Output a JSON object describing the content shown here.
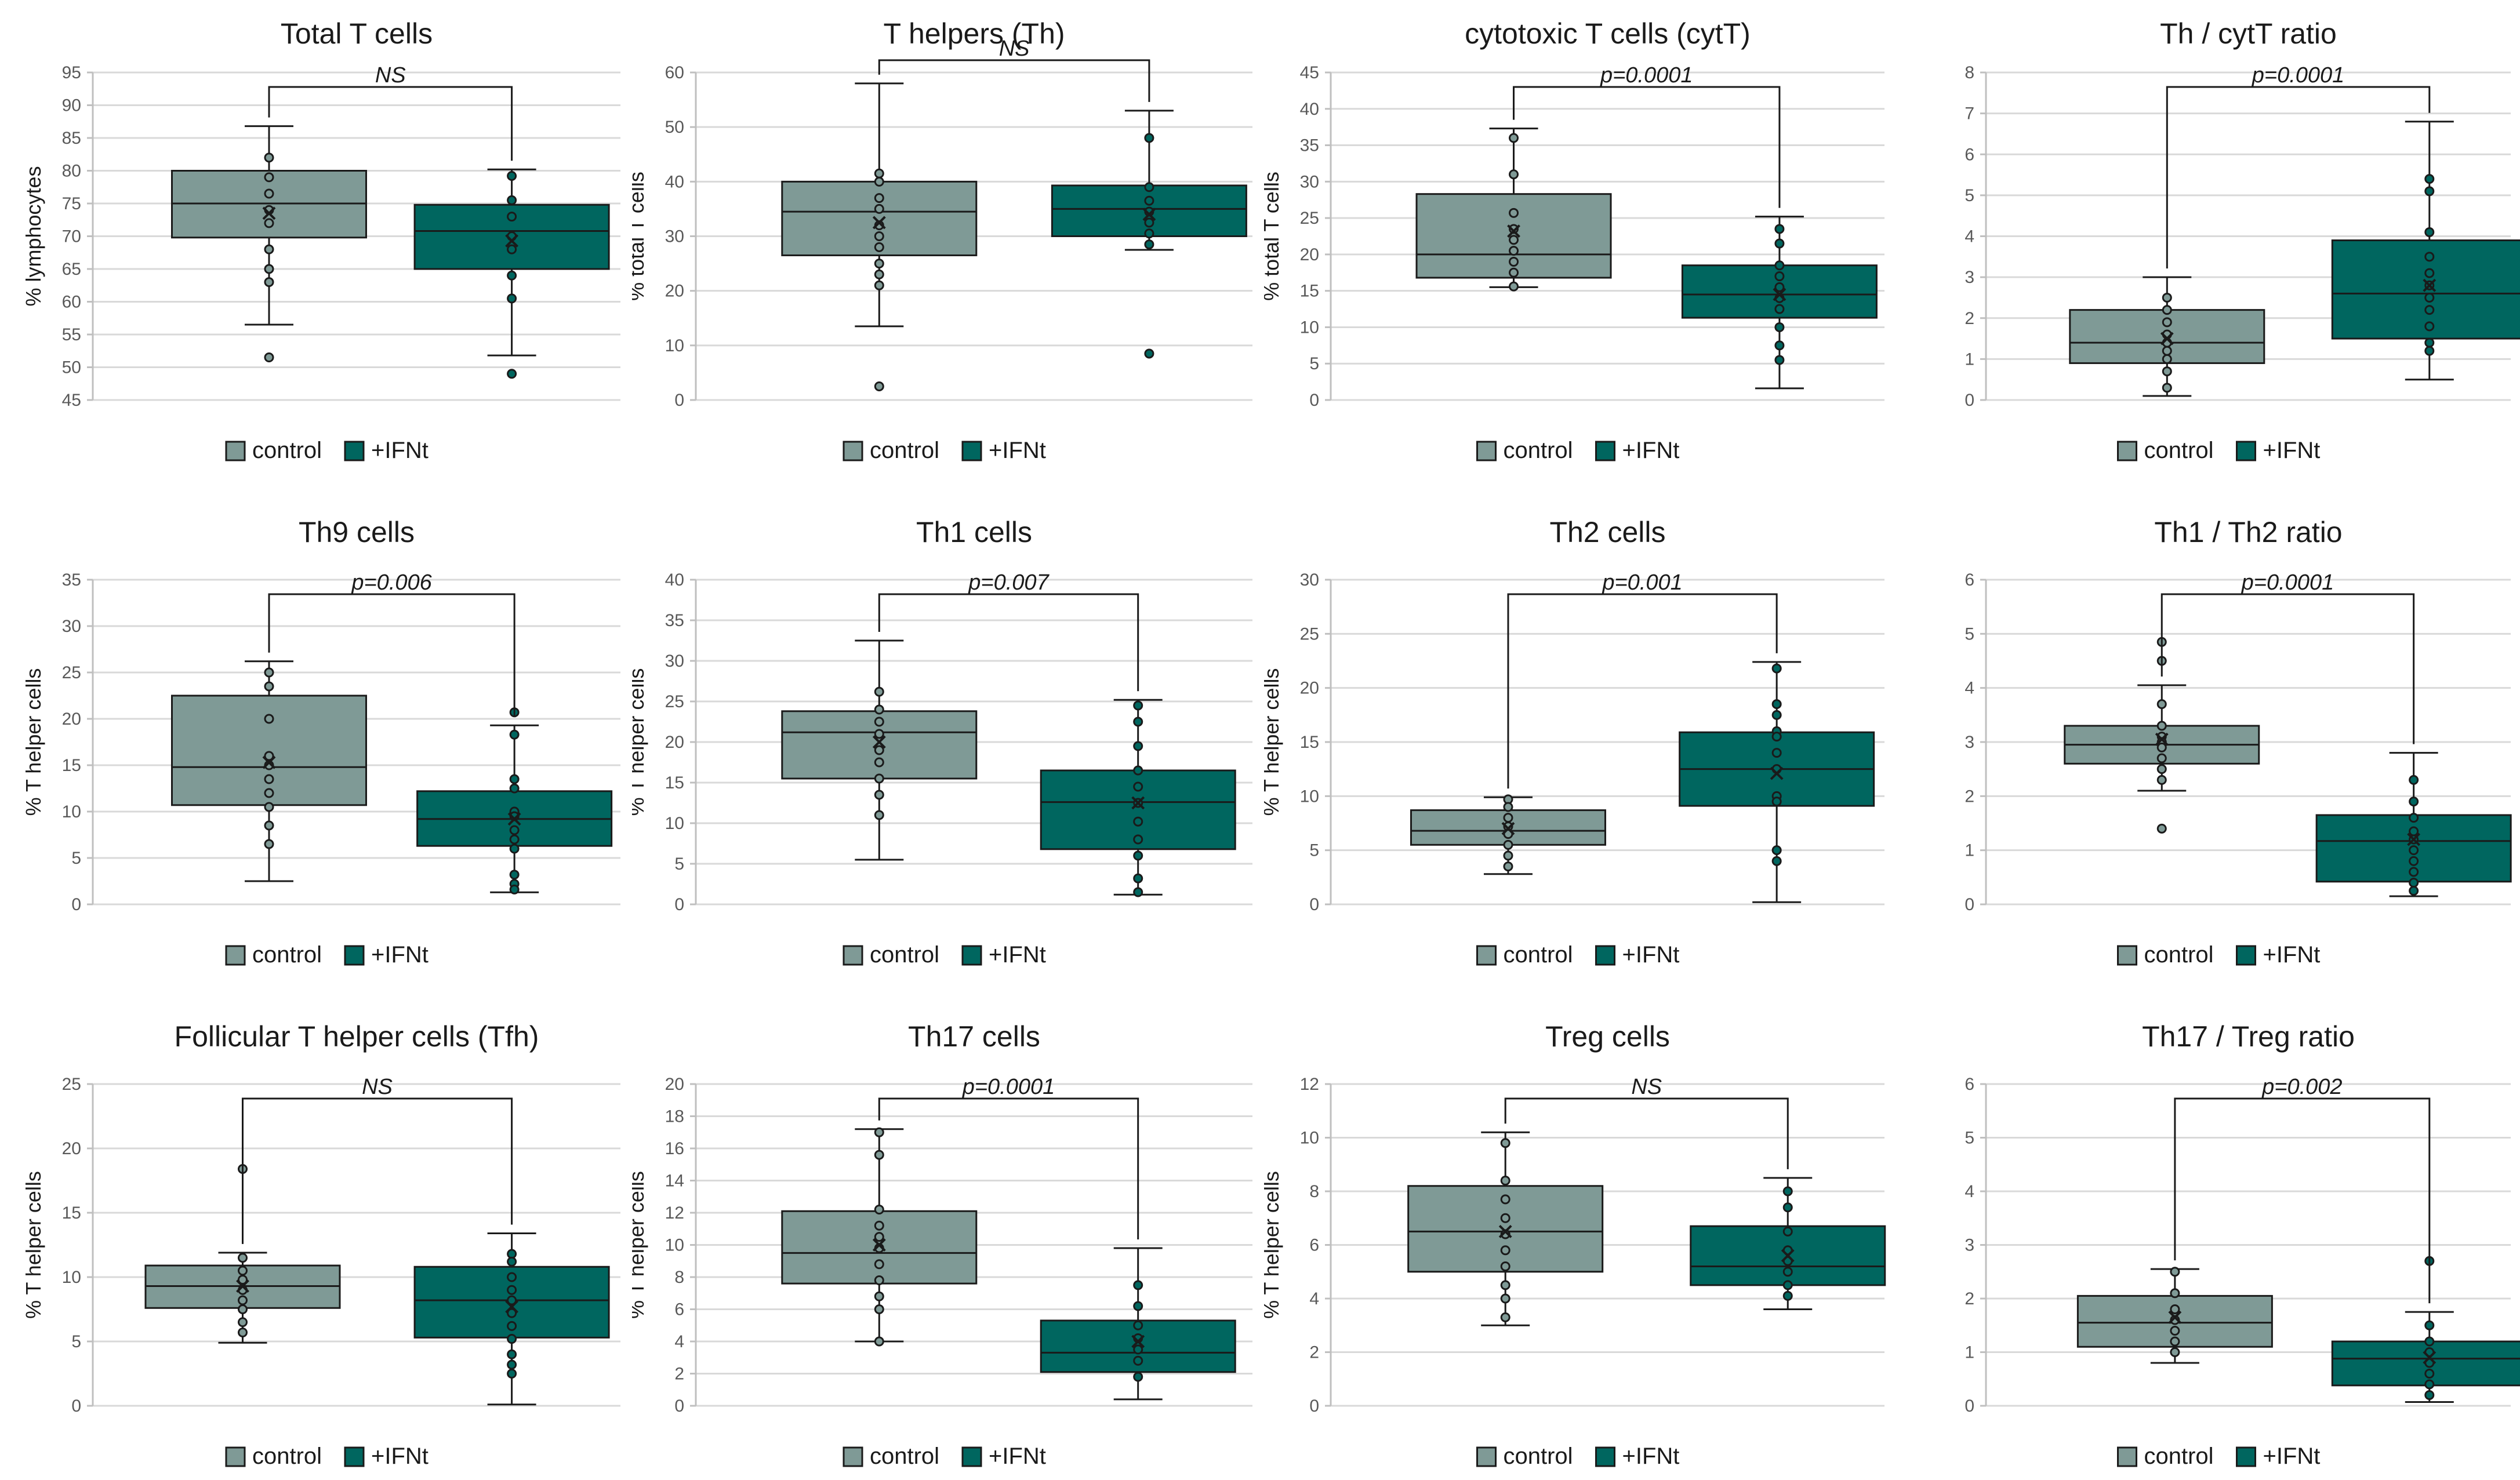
{
  "colors": {
    "control": "#7f9a96",
    "ifnt": "#00665f",
    "grid": "#d9d9d9",
    "line": "#1a1a1a"
  },
  "chart_data": [
    {
      "type": "box",
      "title": "Total T cells",
      "ylabel": "% lymphocytes",
      "ylim": [
        45,
        95
      ],
      "yticks": [
        45,
        50,
        55,
        60,
        65,
        70,
        75,
        80,
        85,
        90,
        95
      ],
      "legend": [
        "control",
        "+IFNt"
      ],
      "significance": "NS",
      "series": [
        {
          "name": "control",
          "min": 56.5,
          "q1": 69.8,
          "median": 75,
          "q3": 80,
          "max": 86.8,
          "mean": 73.5,
          "points": [
            82,
            79,
            76.5,
            74,
            72,
            68,
            65,
            63,
            51.5
          ]
        },
        {
          "name": "+IFNt",
          "min": 51.8,
          "q1": 65,
          "median": 70.8,
          "q3": 74.8,
          "max": 80.2,
          "mean": 69.3,
          "points": [
            79.2,
            75.5,
            73,
            70,
            68,
            64,
            60.5,
            49
          ]
        }
      ]
    },
    {
      "type": "box",
      "title": "T helpers (Th)",
      "ylabel": "% total T cells",
      "ylim": [
        0,
        60
      ],
      "yticks": [
        0,
        10,
        20,
        30,
        40,
        50,
        60
      ],
      "legend": [
        "control",
        "+IFNt"
      ],
      "significance": "NS",
      "series": [
        {
          "name": "control",
          "min": 13.5,
          "q1": 26.5,
          "median": 34.5,
          "q3": 40,
          "max": 58,
          "mean": 32.5,
          "points": [
            41.5,
            40,
            37,
            35,
            32,
            30,
            28,
            25,
            23,
            21,
            2.5
          ]
        },
        {
          "name": "+IFNt",
          "min": 27.5,
          "q1": 30,
          "median": 35,
          "q3": 39.3,
          "max": 53,
          "mean": 34,
          "points": [
            48,
            39,
            36.5,
            34.5,
            32.5,
            30.5,
            28.5,
            8.5
          ]
        }
      ]
    },
    {
      "type": "box",
      "title": "cytotoxic T cells (cytT)",
      "ylabel": "% total T cells",
      "ylim": [
        0,
        45
      ],
      "yticks": [
        0,
        5,
        10,
        15,
        20,
        25,
        30,
        35,
        40,
        45
      ],
      "legend": [
        "control",
        "+IFNt"
      ],
      "significance": "p=0.0001",
      "series": [
        {
          "name": "control",
          "min": 15.5,
          "q1": 16.8,
          "median": 20,
          "q3": 28.3,
          "max": 37.3,
          "mean": 23.2,
          "points": [
            36,
            31,
            25.7,
            23.5,
            22,
            20.5,
            19,
            17.5,
            15.6
          ]
        },
        {
          "name": "+IFNt",
          "min": 1.6,
          "q1": 11.3,
          "median": 14.5,
          "q3": 18.5,
          "max": 25.2,
          "mean": 14.5,
          "points": [
            23.5,
            21.5,
            18.5,
            17,
            15.5,
            14,
            12.5,
            10,
            7.5,
            5.5
          ]
        }
      ]
    },
    {
      "type": "box",
      "title": "Th / cytT ratio",
      "ylabel": "",
      "ylim": [
        0,
        8
      ],
      "yticks": [
        0,
        1,
        2,
        3,
        4,
        5,
        6,
        7,
        8
      ],
      "legend": [
        "control",
        "+IFNt"
      ],
      "significance": "p=0.0001",
      "series": [
        {
          "name": "control",
          "min": 0.1,
          "q1": 0.9,
          "median": 1.4,
          "q3": 2.2,
          "max": 3,
          "mean": 1.5,
          "points": [
            2.5,
            2.2,
            1.9,
            1.6,
            1.4,
            1.2,
            1,
            0.7,
            0.3
          ]
        },
        {
          "name": "+IFNt",
          "min": 0.5,
          "q1": 1.5,
          "median": 2.6,
          "q3": 3.9,
          "max": 6.8,
          "mean": 2.8,
          "points": [
            5.4,
            5.1,
            4.1,
            3.5,
            3.1,
            2.8,
            2.5,
            2.2,
            1.8,
            1.4,
            1.2
          ]
        }
      ]
    },
    {
      "type": "box",
      "title": "Th9 cells",
      "ylabel": "% T helper cells",
      "ylim": [
        0,
        35
      ],
      "yticks": [
        0,
        5,
        10,
        15,
        20,
        25,
        30,
        35
      ],
      "legend": [
        "control",
        "+IFNt"
      ],
      "significance": "p=0.006",
      "series": [
        {
          "name": "control",
          "min": 2.5,
          "q1": 10.7,
          "median": 14.8,
          "q3": 22.5,
          "max": 26.2,
          "mean": 15.3,
          "points": [
            25,
            23.5,
            20,
            16,
            15,
            13.5,
            12,
            10.5,
            8.5,
            6.5
          ]
        },
        {
          "name": "+IFNt",
          "min": 1.3,
          "q1": 6.3,
          "median": 9.2,
          "q3": 12.2,
          "max": 19.3,
          "mean": 9.2,
          "points": [
            20.7,
            18.3,
            13.5,
            12.5,
            10,
            9.5,
            8,
            7,
            6,
            3.2,
            2.2,
            1.6
          ]
        }
      ]
    },
    {
      "type": "box",
      "title": "Th1 cells",
      "ylabel": "% T helper cells",
      "ylim": [
        0,
        40
      ],
      "yticks": [
        0,
        5,
        10,
        15,
        20,
        25,
        30,
        35,
        40
      ],
      "legend": [
        "control",
        "+IFNt"
      ],
      "significance": "p=0.007",
      "series": [
        {
          "name": "control",
          "min": 5.5,
          "q1": 15.5,
          "median": 21.2,
          "q3": 23.8,
          "max": 32.5,
          "mean": 20,
          "points": [
            26.2,
            24,
            22.5,
            21,
            19,
            17.5,
            15.5,
            13.5,
            11
          ]
        },
        {
          "name": "+IFNt",
          "min": 1.2,
          "q1": 6.8,
          "median": 12.6,
          "q3": 16.5,
          "max": 25.2,
          "mean": 12.5,
          "points": [
            24.5,
            22.5,
            19.5,
            16.5,
            14.5,
            12.5,
            10.2,
            8,
            6,
            3.2,
            1.5
          ]
        }
      ]
    },
    {
      "type": "box",
      "title": "Th2 cells",
      "ylabel": "% T helper cells",
      "ylim": [
        0,
        30
      ],
      "yticks": [
        0,
        5,
        10,
        15,
        20,
        25,
        30
      ],
      "legend": [
        "control",
        "+IFNt"
      ],
      "significance": "p=0.001",
      "series": [
        {
          "name": "control",
          "min": 2.8,
          "q1": 5.5,
          "median": 6.8,
          "q3": 8.7,
          "max": 9.9,
          "mean": 7,
          "points": [
            9.7,
            9,
            8,
            7.2,
            6.5,
            5.5,
            4.5,
            3.5
          ]
        },
        {
          "name": "+IFNt",
          "min": 0.2,
          "q1": 9.1,
          "median": 12.5,
          "q3": 15.9,
          "max": 22.4,
          "mean": 12.1,
          "points": [
            21.8,
            18.5,
            17.5,
            16,
            15.5,
            14,
            12.5,
            10,
            9.5,
            5,
            4
          ]
        }
      ]
    },
    {
      "type": "box",
      "title": "Th1 / Th2 ratio",
      "ylabel": "",
      "ylim": [
        0,
        6
      ],
      "yticks": [
        0,
        1,
        2,
        3,
        4,
        5,
        6
      ],
      "legend": [
        "control",
        "+IFNt"
      ],
      "significance": "p=0.0001",
      "series": [
        {
          "name": "control",
          "min": 2.1,
          "q1": 2.6,
          "median": 2.95,
          "q3": 3.3,
          "max": 4.05,
          "mean": 3.05,
          "points": [
            4.85,
            4.5,
            3.7,
            3.3,
            3.1,
            3,
            2.9,
            2.7,
            2.5,
            2.3,
            1.4
          ]
        },
        {
          "name": "+IFNt",
          "min": 0.15,
          "q1": 0.42,
          "median": 1.17,
          "q3": 1.65,
          "max": 2.8,
          "mean": 1.2,
          "points": [
            2.3,
            1.9,
            1.6,
            1.35,
            1.2,
            1,
            0.8,
            0.6,
            0.4,
            0.25
          ]
        }
      ]
    },
    {
      "type": "box",
      "title": "Follicular T helper cells (Tfh)",
      "ylabel": "% T helper cells",
      "ylim": [
        0,
        25
      ],
      "yticks": [
        0,
        5,
        10,
        15,
        20,
        25
      ],
      "legend": [
        "control",
        "+IFNt"
      ],
      "significance": "NS",
      "series": [
        {
          "name": "control",
          "min": 4.9,
          "q1": 7.6,
          "median": 9.3,
          "q3": 10.9,
          "max": 11.9,
          "mean": 9.3,
          "points": [
            18.4,
            11.5,
            10.5,
            9.8,
            9,
            8.2,
            7.5,
            6.5,
            5.7
          ]
        },
        {
          "name": "+IFNt",
          "min": 0.1,
          "q1": 5.3,
          "median": 8.2,
          "q3": 10.8,
          "max": 13.4,
          "mean": 7.7,
          "points": [
            11.8,
            11.2,
            10,
            9,
            8.2,
            7.2,
            6.2,
            5.2,
            4,
            3.2,
            2.5
          ]
        }
      ]
    },
    {
      "type": "box",
      "title": "Th17 cells",
      "ylabel": "% T helper cells",
      "ylim": [
        0,
        20
      ],
      "yticks": [
        0,
        2,
        4,
        6,
        8,
        10,
        12,
        14,
        16,
        18,
        20
      ],
      "legend": [
        "control",
        "+IFNt"
      ],
      "significance": "p=0.0001",
      "series": [
        {
          "name": "control",
          "min": 4,
          "q1": 7.6,
          "median": 9.5,
          "q3": 12.1,
          "max": 17.2,
          "mean": 10,
          "points": [
            17,
            15.6,
            12.2,
            11.2,
            10.5,
            9.8,
            8.8,
            7.8,
            6.8,
            6,
            4
          ]
        },
        {
          "name": "+IFNt",
          "min": 0.4,
          "q1": 2.1,
          "median": 3.3,
          "q3": 5.3,
          "max": 9.8,
          "mean": 4,
          "points": [
            7.5,
            6.2,
            5,
            4.2,
            3.5,
            2.8,
            1.8
          ]
        }
      ]
    },
    {
      "type": "box",
      "title": "Treg cells",
      "ylabel": "% T helper cells",
      "ylim": [
        0,
        12
      ],
      "yticks": [
        0,
        2,
        4,
        6,
        8,
        10,
        12
      ],
      "legend": [
        "control",
        "+IFNt"
      ],
      "significance": "NS",
      "series": [
        {
          "name": "control",
          "min": 3,
          "q1": 5,
          "median": 6.5,
          "q3": 8.2,
          "max": 10.2,
          "mean": 6.5,
          "points": [
            9.8,
            8.4,
            7.7,
            7,
            6.4,
            5.8,
            5.2,
            4.5,
            4,
            3.3
          ]
        },
        {
          "name": "+IFNt",
          "min": 3.6,
          "q1": 4.5,
          "median": 5.2,
          "q3": 6.7,
          "max": 8.5,
          "mean": 5.6,
          "points": [
            8,
            7.4,
            6.5,
            5.8,
            5.4,
            5,
            4.5,
            4.1
          ]
        }
      ]
    },
    {
      "type": "box",
      "title": "Th17 / Treg ratio",
      "ylabel": "",
      "ylim": [
        0,
        6
      ],
      "yticks": [
        0,
        1,
        2,
        3,
        4,
        5,
        6
      ],
      "legend": [
        "control",
        "+IFNt"
      ],
      "significance": "p=0.002",
      "series": [
        {
          "name": "control",
          "min": 0.8,
          "q1": 1.1,
          "median": 1.55,
          "q3": 2.05,
          "max": 2.55,
          "mean": 1.65,
          "points": [
            2.5,
            2.1,
            1.8,
            1.6,
            1.4,
            1.2,
            1
          ]
        },
        {
          "name": "+IFNt",
          "min": 0.07,
          "q1": 0.38,
          "median": 0.88,
          "q3": 1.2,
          "max": 1.75,
          "mean": 0.9,
          "points": [
            2.7,
            1.5,
            1.2,
            1,
            0.8,
            0.6,
            0.4,
            0.2
          ]
        }
      ]
    }
  ]
}
